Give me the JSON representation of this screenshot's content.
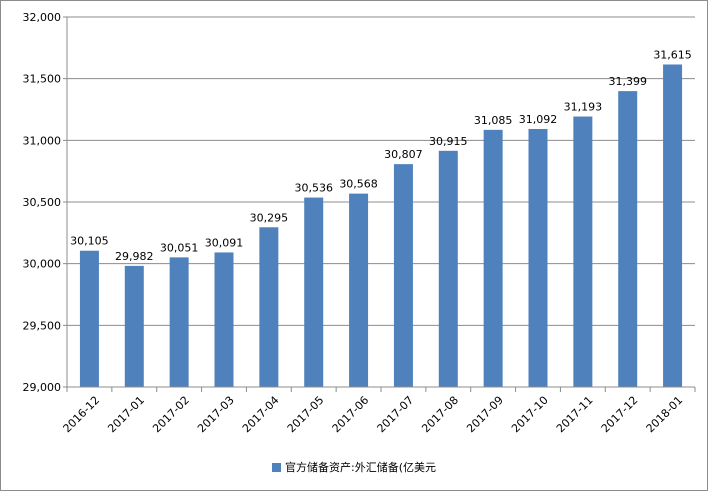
{
  "chart_data": {
    "type": "bar",
    "categories": [
      "2016-12",
      "2017-01",
      "2017-02",
      "2017-03",
      "2017-04",
      "2017-05",
      "2017-06",
      "2017-07",
      "2017-08",
      "2017-09",
      "2017-10",
      "2017-11",
      "2017-12",
      "2018-01"
    ],
    "series": [
      {
        "name": "官方储备资产:外汇储备(亿美元",
        "values": [
          30105,
          29982,
          30051,
          30091,
          30295,
          30536,
          30568,
          30807,
          30915,
          31085,
          31092,
          31193,
          31399,
          31615
        ],
        "labels": [
          "30,105",
          "29,982",
          "30,051",
          "30,091",
          "30,295",
          "30,536",
          "30,568",
          "30,807",
          "30,915",
          "31,085",
          "31,092",
          "31,193",
          "31,399",
          "31,615"
        ],
        "color": "#4f81bd"
      }
    ],
    "title": "",
    "xlabel": "",
    "ylabel": "",
    "ylim": [
      29000,
      32000
    ],
    "yticks": [
      29000,
      29500,
      30000,
      30500,
      31000,
      31500,
      32000
    ],
    "ytick_labels": [
      "29,000",
      "29,500",
      "30,000",
      "30,500",
      "31,000",
      "31,500",
      "32,000"
    ],
    "grid": true,
    "legend_position": "bottom",
    "gridline_color": "#8c8c8c",
    "axis_color": "#8c8c8c"
  }
}
